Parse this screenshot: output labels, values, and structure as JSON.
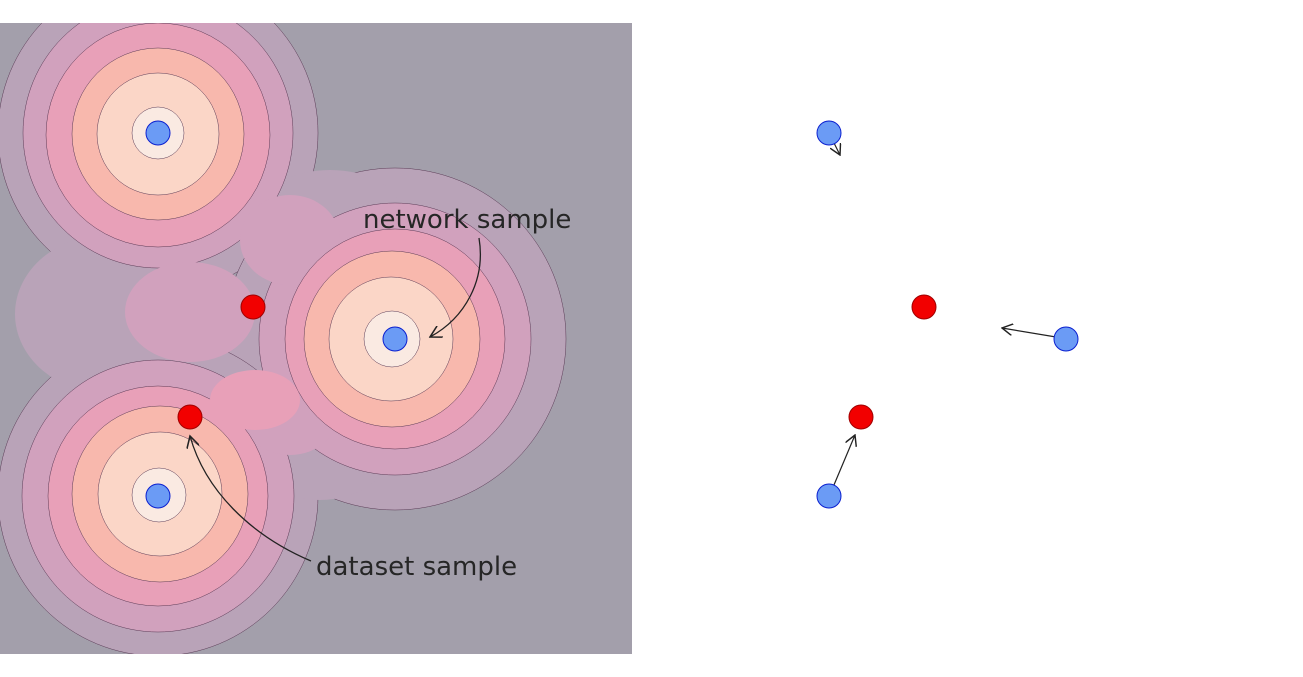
{
  "annotations": [
    "network sample",
    "dataset sample"
  ]
}
